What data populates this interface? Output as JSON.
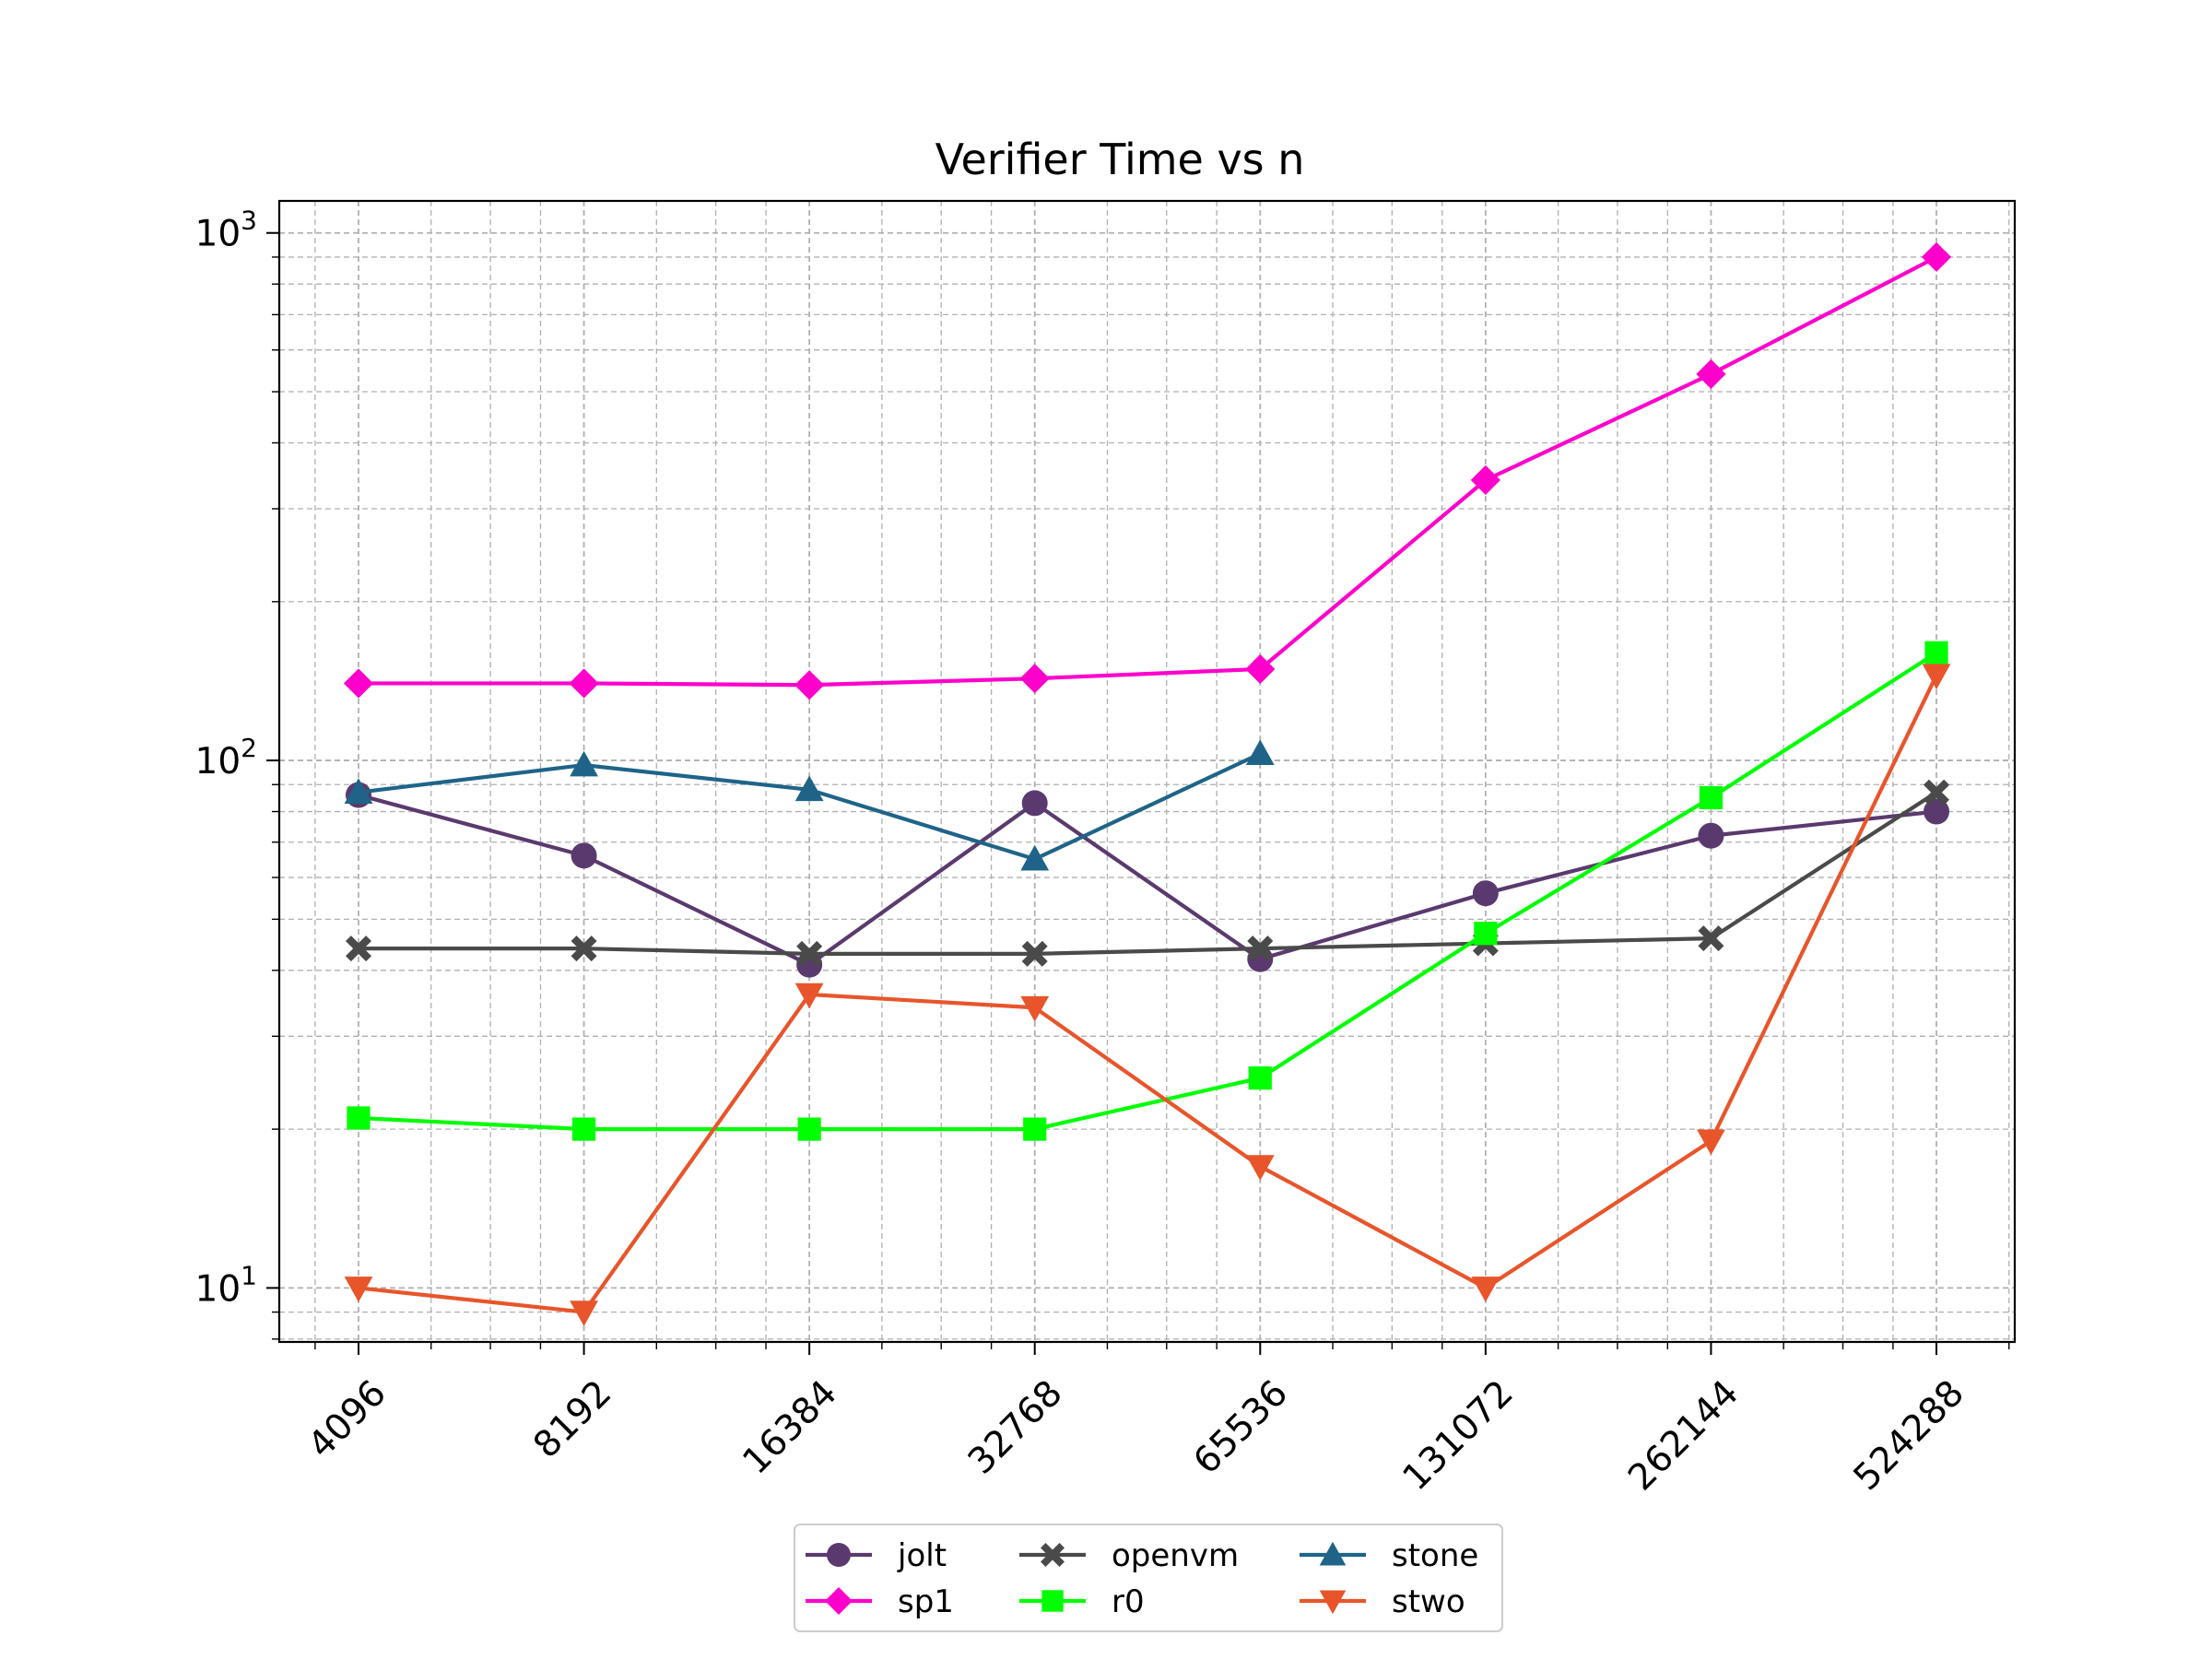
{
  "chart_data": {
    "type": "line",
    "title": "Verifier Time vs n",
    "xlabel": "",
    "ylabel": "",
    "x_scale": "log2",
    "y_scale": "log10",
    "ylim": [
      7.9,
      1150
    ],
    "grid": true,
    "grid_style": "dashed",
    "legend_placement": "bottom-center, below plot",
    "categories": [
      "4096",
      "8192",
      "16384",
      "32768",
      "65536",
      "131072",
      "262144",
      "524288"
    ],
    "y_tick_labels": [
      {
        "base": "10",
        "exp": "1",
        "value": 10
      },
      {
        "base": "10",
        "exp": "2",
        "value": 100
      },
      {
        "base": "10",
        "exp": "3",
        "value": 1000
      }
    ],
    "series": [
      {
        "name": "jolt",
        "color": "#5a3a6e",
        "marker": "circle",
        "values": [
          86,
          66,
          41,
          83,
          42,
          56,
          72,
          80
        ]
      },
      {
        "name": "sp1",
        "color": "#ff00cc",
        "marker": "diamond",
        "values": [
          140,
          140,
          139,
          143,
          149,
          340,
          540,
          900
        ]
      },
      {
        "name": "openvm",
        "color": "#4a4a4a",
        "marker": "x-filled",
        "values": [
          44,
          44,
          43,
          43,
          44,
          45,
          46,
          87
        ]
      },
      {
        "name": "r0",
        "color": "#00ff00",
        "marker": "square",
        "values": [
          21,
          20,
          20,
          20,
          25,
          47,
          85,
          160
        ]
      },
      {
        "name": "stone",
        "color": "#1f6488",
        "marker": "triangle-up",
        "values": [
          87,
          98,
          88,
          65,
          103,
          null,
          null,
          null
        ]
      },
      {
        "name": "stwo",
        "color": "#e8552b",
        "marker": "triangle-down",
        "values": [
          10,
          9,
          36,
          34,
          17,
          10,
          19,
          145
        ]
      }
    ]
  }
}
